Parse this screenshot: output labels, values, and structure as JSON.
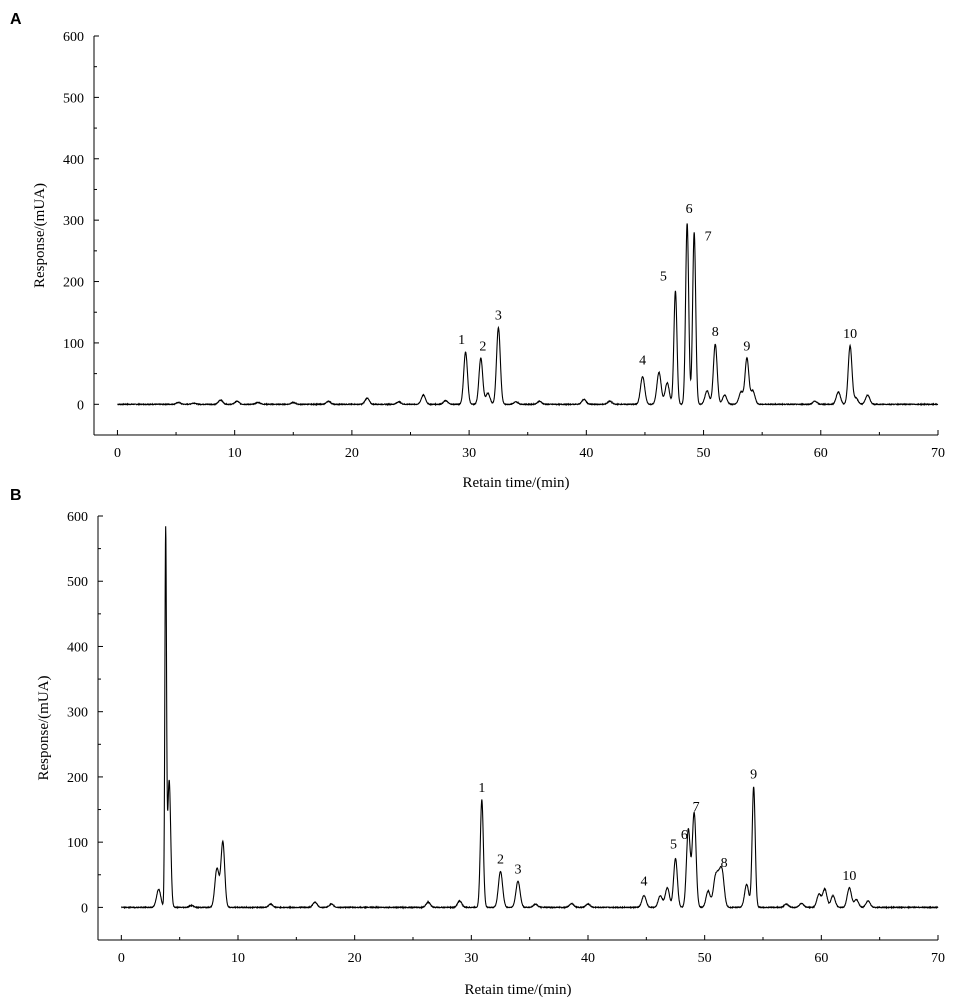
{
  "chart_data": [
    {
      "type": "line",
      "panel": "A",
      "xlabel": "Retain time/(min)",
      "ylabel": "Response/(mUA)",
      "xlim": [
        -2,
        70
      ],
      "ylim": [
        -50,
        600
      ],
      "xticks": [
        0,
        10,
        20,
        30,
        40,
        50,
        60,
        70
      ],
      "yticks": [
        0,
        100,
        200,
        300,
        400,
        500,
        600
      ],
      "grid": false,
      "peaks": [
        {
          "label": "1",
          "x": 29.7,
          "y": 85
        },
        {
          "label": "2",
          "x": 31.0,
          "y": 75
        },
        {
          "label": "3",
          "x": 32.5,
          "y": 125
        },
        {
          "label": "4",
          "x": 44.8,
          "y": 45
        },
        {
          "label": "5",
          "x": 47.6,
          "y": 185
        },
        {
          "label": "6",
          "x": 48.6,
          "y": 295
        },
        {
          "label": "7",
          "x": 49.2,
          "y": 280
        },
        {
          "label": "8",
          "x": 51.0,
          "y": 98
        },
        {
          "label": "9",
          "x": 53.7,
          "y": 75
        },
        {
          "label": "10",
          "x": 62.5,
          "y": 95
        }
      ],
      "minor_peaks": [
        {
          "x": 5.2,
          "y": 3
        },
        {
          "x": 6.5,
          "y": 2
        },
        {
          "x": 8.8,
          "y": 7
        },
        {
          "x": 10.2,
          "y": 5
        },
        {
          "x": 12.0,
          "y": 3
        },
        {
          "x": 15.0,
          "y": 3
        },
        {
          "x": 18.0,
          "y": 5
        },
        {
          "x": 21.3,
          "y": 10
        },
        {
          "x": 24.0,
          "y": 4
        },
        {
          "x": 26.1,
          "y": 15
        },
        {
          "x": 28.0,
          "y": 6
        },
        {
          "x": 31.6,
          "y": 18
        },
        {
          "x": 34.0,
          "y": 4
        },
        {
          "x": 36.0,
          "y": 5
        },
        {
          "x": 39.8,
          "y": 8
        },
        {
          "x": 42.0,
          "y": 5
        },
        {
          "x": 46.2,
          "y": 52
        },
        {
          "x": 46.9,
          "y": 35
        },
        {
          "x": 50.3,
          "y": 22
        },
        {
          "x": 51.8,
          "y": 15
        },
        {
          "x": 53.2,
          "y": 20
        },
        {
          "x": 54.2,
          "y": 22
        },
        {
          "x": 59.5,
          "y": 5
        },
        {
          "x": 61.5,
          "y": 20
        },
        {
          "x": 63.0,
          "y": 10
        },
        {
          "x": 64.0,
          "y": 15
        }
      ]
    },
    {
      "type": "line",
      "panel": "B",
      "xlabel": "Retain time/(min)",
      "ylabel": "Response/(mUA)",
      "xlim": [
        -2,
        70
      ],
      "ylim": [
        -50,
        600
      ],
      "xticks": [
        0,
        10,
        20,
        30,
        40,
        50,
        60,
        70
      ],
      "yticks": [
        0,
        100,
        200,
        300,
        400,
        500,
        600
      ],
      "grid": false,
      "peaks": [
        {
          "label": "1",
          "x": 30.9,
          "y": 165
        },
        {
          "label": "2",
          "x": 32.5,
          "y": 55
        },
        {
          "label": "3",
          "x": 34.0,
          "y": 40
        },
        {
          "label": "4",
          "x": 44.8,
          "y": 18
        },
        {
          "label": "5",
          "x": 47.5,
          "y": 75
        },
        {
          "label": "6",
          "x": 48.6,
          "y": 120
        },
        {
          "label": "7",
          "x": 49.1,
          "y": 145
        },
        {
          "label": "8",
          "x": 51.5,
          "y": 50
        },
        {
          "label": "9",
          "x": 54.2,
          "y": 185
        },
        {
          "label": "10",
          "x": 62.4,
          "y": 30
        }
      ],
      "minor_peaks": [
        {
          "x": 3.2,
          "y": 28
        },
        {
          "x": 3.8,
          "y": 570
        },
        {
          "x": 4.1,
          "y": 195
        },
        {
          "x": 6.0,
          "y": 3
        },
        {
          "x": 8.2,
          "y": 60
        },
        {
          "x": 8.7,
          "y": 100
        },
        {
          "x": 12.8,
          "y": 5
        },
        {
          "x": 16.6,
          "y": 8
        },
        {
          "x": 18.0,
          "y": 5
        },
        {
          "x": 26.3,
          "y": 8
        },
        {
          "x": 29.0,
          "y": 10
        },
        {
          "x": 35.5,
          "y": 5
        },
        {
          "x": 38.6,
          "y": 6
        },
        {
          "x": 40.0,
          "y": 5
        },
        {
          "x": 46.2,
          "y": 18
        },
        {
          "x": 46.8,
          "y": 30
        },
        {
          "x": 50.3,
          "y": 25
        },
        {
          "x": 50.9,
          "y": 40
        },
        {
          "x": 51.2,
          "y": 35
        },
        {
          "x": 53.6,
          "y": 35
        },
        {
          "x": 57.0,
          "y": 5
        },
        {
          "x": 58.3,
          "y": 6
        },
        {
          "x": 59.8,
          "y": 20
        },
        {
          "x": 60.3,
          "y": 28
        },
        {
          "x": 61.0,
          "y": 18
        },
        {
          "x": 63.0,
          "y": 12
        },
        {
          "x": 64.0,
          "y": 10
        }
      ]
    }
  ]
}
